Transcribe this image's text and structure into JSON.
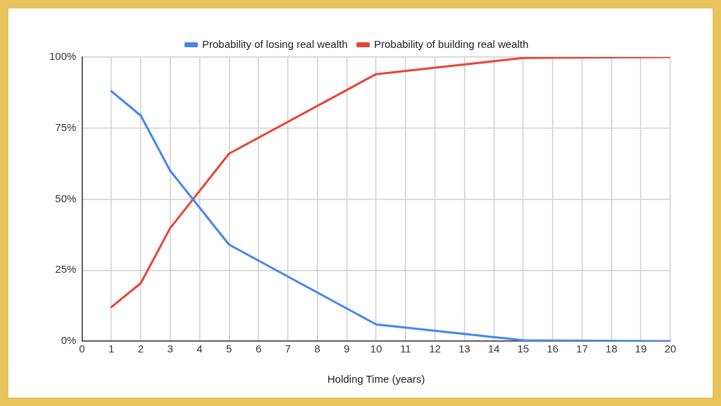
{
  "chart_data": {
    "type": "line",
    "xlabel": "Holding Time (years)",
    "xlim": [
      0,
      20
    ],
    "xticks": [
      0,
      1,
      2,
      3,
      4,
      5,
      6,
      7,
      8,
      9,
      10,
      11,
      12,
      13,
      14,
      15,
      16,
      17,
      18,
      19,
      20
    ],
    "ylim": [
      0,
      100
    ],
    "yticks": [
      {
        "value": 0,
        "label": "0%"
      },
      {
        "value": 25,
        "label": "25%"
      },
      {
        "value": 50,
        "label": "50%"
      },
      {
        "value": 75,
        "label": "75%"
      },
      {
        "value": 100,
        "label": "100%"
      }
    ],
    "x": [
      1,
      2,
      3,
      5,
      10,
      15,
      20
    ],
    "series": [
      {
        "name": "Probability of losing real wealth",
        "color": "#4285f4",
        "values": [
          88,
          79.4,
          60,
          34,
          5.9,
          0.3,
          0
        ]
      },
      {
        "name": "Probability of building real wealth",
        "color": "#ea4335",
        "values": [
          12,
          20.4,
          39.8,
          66,
          94,
          99.7,
          100
        ]
      }
    ],
    "grid": true,
    "legend": "top",
    "marker": "none",
    "line_style": "solid"
  }
}
